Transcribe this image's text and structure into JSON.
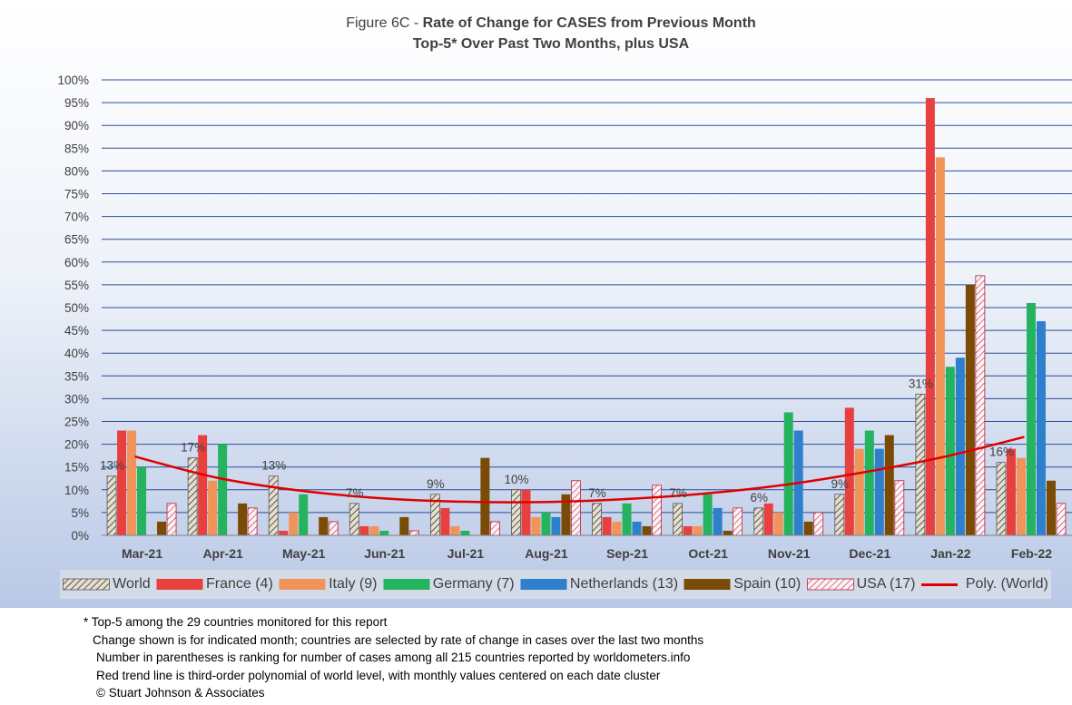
{
  "title_prefix": "Figure 6C - ",
  "title_main": "Rate of Change for CASES from Previous Month",
  "subtitle": "Top-5* Over Past Two Months, plus USA",
  "footnotes": [
    "* Top-5 among the 29 countries monitored for this report",
    "Change shown is for indicated month; countries are selected by rate of change in cases over the last two months",
    "Number in parentheses is ranking for number of cases among all 215 countries reported by worldometers.info",
    "Red trend line is third-order polynomial of world level, with monthly values centered on each date cluster",
    "© Stuart Johnson & Associates"
  ],
  "legend_trend_label": "Poly. (World)",
  "chart_data": {
    "type": "bar",
    "categories": [
      "Mar-21",
      "Apr-21",
      "May-21",
      "Jun-21",
      "Jul-21",
      "Aug-21",
      "Sep-21",
      "Oct-21",
      "Nov-21",
      "Dec-21",
      "Jan-22",
      "Feb-22"
    ],
    "yticks": [
      "0%",
      "5%",
      "10%",
      "15%",
      "20%",
      "25%",
      "30%",
      "35%",
      "40%",
      "45%",
      "50%",
      "55%",
      "60%",
      "65%",
      "70%",
      "75%",
      "80%",
      "85%",
      "90%",
      "95%",
      "100%"
    ],
    "ylim": [
      0,
      100
    ],
    "grid": true,
    "legend_position": "bottom",
    "series": [
      {
        "name": "World",
        "color": "#d9d0c0",
        "pattern": "hatch-black",
        "values": [
          13,
          17,
          13,
          7,
          9,
          10,
          7,
          7,
          6,
          9,
          31,
          16
        ]
      },
      {
        "name": "France (4)",
        "color": "#e8403f",
        "values": [
          23,
          22,
          1,
          2,
          6,
          10,
          4,
          2,
          7,
          28,
          96,
          19
        ]
      },
      {
        "name": "Italy (9)",
        "color": "#f0945a",
        "values": [
          23,
          12,
          5,
          2,
          2,
          4,
          3,
          2,
          5,
          19,
          83,
          17
        ]
      },
      {
        "name": "Germany (7)",
        "color": "#24b35f",
        "values": [
          15,
          20,
          9,
          1,
          1,
          5,
          7,
          9,
          27,
          23,
          37,
          51
        ]
      },
      {
        "name": "Netherlands (13)",
        "color": "#2e80cc",
        "values": [
          0,
          0,
          0,
          0,
          0,
          4,
          3,
          6,
          23,
          19,
          39,
          47
        ]
      },
      {
        "name": "Spain (10)",
        "color": "#7a4b05",
        "values": [
          3,
          7,
          4,
          4,
          17,
          9,
          2,
          1,
          3,
          22,
          55,
          12
        ]
      },
      {
        "name": "USA (17)",
        "color": "#f7f7f7",
        "pattern": "hatch-red",
        "values": [
          7,
          6,
          3,
          1,
          3,
          12,
          11,
          6,
          5,
          12,
          57,
          7
        ]
      }
    ],
    "data_labels": [
      "13%",
      "17%",
      "13%",
      "7%",
      "9%",
      "10%",
      "7%",
      "7%",
      "6%",
      "9%",
      "31%",
      "16%"
    ],
    "trend": {
      "name": "Poly. (World)",
      "color": "#e00000",
      "values": [
        17.3,
        12.7,
        9.9,
        8.2,
        7.4,
        7.3,
        7.9,
        9.1,
        11.0,
        13.8,
        17.2,
        21.6
      ]
    }
  }
}
